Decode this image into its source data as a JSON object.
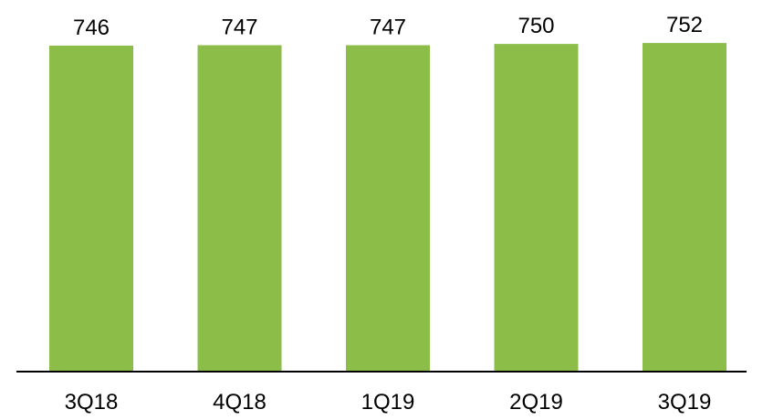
{
  "chart_data": {
    "type": "bar",
    "categories": [
      "3Q18",
      "4Q18",
      "1Q19",
      "2Q19",
      "3Q19"
    ],
    "values": [
      746,
      747,
      747,
      750,
      752
    ],
    "data_labels": [
      "746",
      "747",
      "747",
      "750",
      "752"
    ],
    "title": "",
    "xlabel": "",
    "ylabel": "",
    "grid": false,
    "legend": "none",
    "bar_color": "#8BBD48",
    "axis_color": "#000000"
  }
}
